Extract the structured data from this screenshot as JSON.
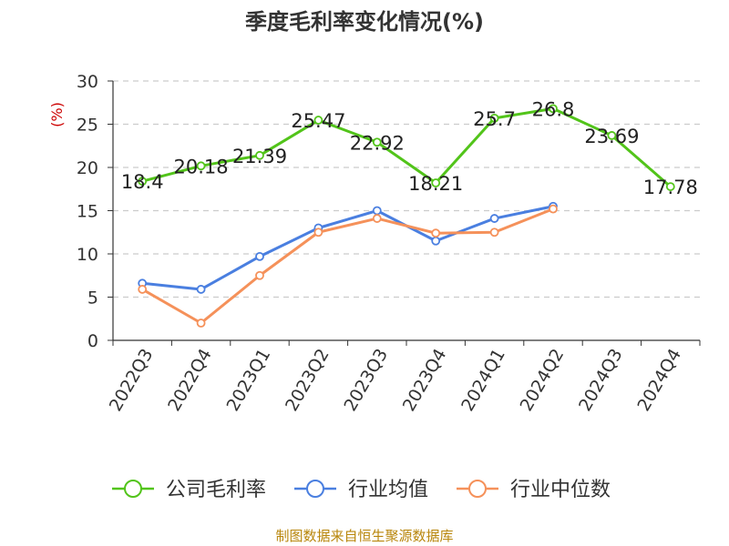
{
  "title": "季度毛利率变化情况(%)",
  "source": "制图数据来自恒生聚源数据库",
  "chart_data": {
    "type": "line",
    "title": "季度毛利率变化情况(%)",
    "ylabel": "(%)",
    "ylim": [
      0,
      30
    ],
    "yticks": [
      0,
      5,
      10,
      15,
      20,
      25,
      30
    ],
    "grid": true,
    "legend_position": "bottom",
    "categories": [
      "2022Q3",
      "2022Q4",
      "2023Q1",
      "2023Q2",
      "2023Q3",
      "2023Q4",
      "2024Q1",
      "2024Q2",
      "2024Q3",
      "2024Q4"
    ],
    "series": [
      {
        "name": "公司毛利率",
        "color": "#52c41a",
        "show_labels": true,
        "labels": [
          "18.4",
          "20.18",
          "21.39",
          "25.47",
          "22.92",
          "18.21",
          "25.7",
          "26.8",
          "23.69",
          "17.78"
        ],
        "values": [
          18.4,
          20.18,
          21.39,
          25.47,
          22.92,
          18.21,
          25.7,
          26.8,
          23.69,
          17.78
        ]
      },
      {
        "name": "行业均值",
        "color": "#4a7fe0",
        "show_labels": false,
        "values": [
          6.6,
          5.9,
          9.7,
          13.0,
          15.0,
          11.5,
          14.1,
          15.5,
          null,
          null
        ]
      },
      {
        "name": "行业中位数",
        "color": "#f5915a",
        "show_labels": false,
        "values": [
          5.9,
          2.0,
          7.5,
          12.5,
          14.1,
          12.4,
          12.5,
          15.2,
          null,
          null
        ]
      }
    ]
  }
}
